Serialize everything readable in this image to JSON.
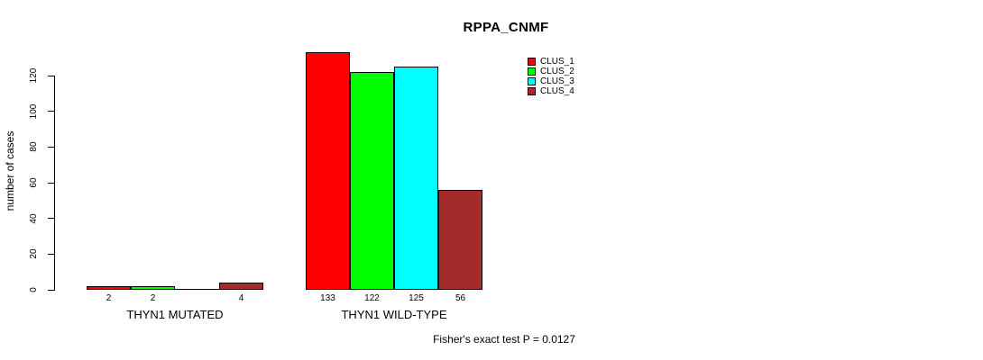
{
  "chart_data": {
    "type": "bar",
    "title": "RPPA_CNMF",
    "ylabel": "number of cases",
    "xlabel": "",
    "categories": [
      "THYN1 MUTATED",
      "THYN1 WILD-TYPE"
    ],
    "series": [
      {
        "name": "CLUS_1",
        "color": "#ff0000",
        "values": [
          2,
          133
        ]
      },
      {
        "name": "CLUS_2",
        "color": "#00ff00",
        "values": [
          2,
          122
        ]
      },
      {
        "name": "CLUS_3",
        "color": "#00ffff",
        "values": [
          0,
          125
        ]
      },
      {
        "name": "CLUS_4",
        "color": "#a52a2a",
        "values": [
          4,
          56
        ]
      }
    ],
    "bar_value_labels": [
      [
        "2",
        "2",
        "",
        "4"
      ],
      [
        "133",
        "122",
        "125",
        "56"
      ]
    ],
    "yticks": [
      0,
      20,
      40,
      60,
      80,
      100,
      120
    ],
    "ylim": [
      0,
      134
    ],
    "grid": false,
    "legend": {
      "position": "top-right",
      "entries": [
        "CLUS_1",
        "CLUS_2",
        "CLUS_3",
        "CLUS_4"
      ]
    },
    "annotation": "Fisher's exact test P = 0.0127"
  }
}
